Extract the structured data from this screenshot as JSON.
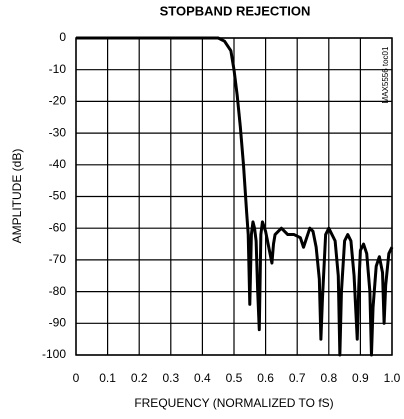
{
  "chart_data": {
    "type": "line",
    "title": "STOPBAND REJECTION",
    "x_label": "FREQUENCY (NORMALIZED TO fS)",
    "y_label": "AMPLITUDE (dB)",
    "annotation": "MAX5556 toc01",
    "x": [
      0,
      0.1,
      0.2,
      0.3,
      0.4,
      0.45,
      0.47,
      0.49,
      0.5,
      0.51,
      0.52,
      0.53,
      0.54,
      0.545,
      0.55,
      0.555,
      0.56,
      0.565,
      0.57,
      0.575,
      0.58,
      0.585,
      0.59,
      0.6,
      0.61,
      0.62,
      0.625,
      0.63,
      0.65,
      0.67,
      0.69,
      0.71,
      0.72,
      0.74,
      0.75,
      0.76,
      0.77,
      0.775,
      0.78,
      0.79,
      0.8,
      0.82,
      0.83,
      0.835,
      0.84,
      0.85,
      0.86,
      0.87,
      0.88,
      0.89,
      0.895,
      0.9,
      0.91,
      0.92,
      0.93,
      0.935,
      0.94,
      0.95,
      0.96,
      0.97,
      0.975,
      0.98,
      0.99,
      1.0
    ],
    "series": [
      {
        "name": "Amplitude",
        "color": "#000000",
        "values": [
          0,
          0,
          0,
          0,
          0,
          0,
          -1,
          -4,
          -10,
          -18,
          -28,
          -40,
          -55,
          -62,
          -84,
          -62,
          -58,
          -60,
          -64,
          -80,
          -92,
          -62,
          -58,
          -61,
          -66,
          -71,
          -65,
          -62,
          -60,
          -62,
          -62,
          -63,
          -66,
          -60,
          -61,
          -66,
          -76,
          -95,
          -82,
          -62,
          -60,
          -64,
          -75,
          -100,
          -80,
          -64,
          -62,
          -64,
          -75,
          -95,
          -78,
          -67,
          -65,
          -68,
          -80,
          -100,
          -85,
          -72,
          -69,
          -74,
          -90,
          -78,
          -68,
          -66
        ]
      }
    ],
    "xlim": [
      0,
      1
    ],
    "ylim": [
      -100,
      0
    ],
    "xticks": [
      0,
      0.1,
      0.2,
      0.3,
      0.4,
      0.5,
      0.6,
      0.7,
      0.8,
      0.9,
      {
        "value": 1,
        "label": "1.0"
      }
    ],
    "yticks": [
      0,
      -10,
      -20,
      -30,
      -40,
      -50,
      -60,
      -70,
      -80,
      -90,
      -100
    ],
    "grid": true
  }
}
